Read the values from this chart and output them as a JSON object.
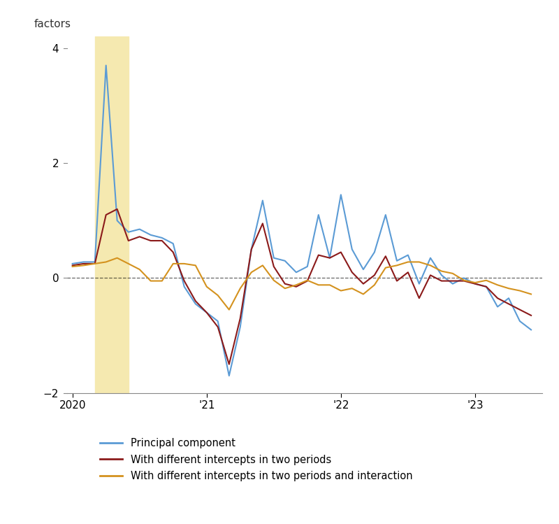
{
  "title": "",
  "ylabel": "factors",
  "ylim": [
    -2.0,
    4.2
  ],
  "yticks": [
    -2,
    0,
    2,
    4
  ],
  "background_color": "#ffffff",
  "shading_color": "#f5e9b0",
  "shading_start": 2020.17,
  "shading_end": 2020.42,
  "line_blue": "#5b9bd5",
  "line_red": "#8b1a1a",
  "line_orange": "#d4921e",
  "legend_labels": [
    "Principal component",
    "With different intercepts in two periods",
    "With different intercepts in two periods and interaction"
  ],
  "dates": [
    2020.0,
    2020.083,
    2020.167,
    2020.25,
    2020.333,
    2020.417,
    2020.5,
    2020.583,
    2020.667,
    2020.75,
    2020.833,
    2020.917,
    2021.0,
    2021.083,
    2021.167,
    2021.25,
    2021.333,
    2021.417,
    2021.5,
    2021.583,
    2021.667,
    2021.75,
    2021.833,
    2021.917,
    2022.0,
    2022.083,
    2022.167,
    2022.25,
    2022.333,
    2022.417,
    2022.5,
    2022.583,
    2022.667,
    2022.75,
    2022.833,
    2022.917,
    2023.0,
    2023.083,
    2023.167,
    2023.25,
    2023.333,
    2023.417
  ],
  "blue_values": [
    0.25,
    0.28,
    0.28,
    3.7,
    1.0,
    0.8,
    0.85,
    0.75,
    0.7,
    0.6,
    -0.15,
    -0.45,
    -0.6,
    -0.75,
    -1.7,
    -0.85,
    0.5,
    1.35,
    0.35,
    0.3,
    0.1,
    0.2,
    1.1,
    0.35,
    1.45,
    0.5,
    0.15,
    0.45,
    1.1,
    0.3,
    0.4,
    -0.1,
    0.35,
    0.05,
    -0.1,
    0.0,
    -0.1,
    -0.15,
    -0.5,
    -0.35,
    -0.75,
    -0.9
  ],
  "red_values": [
    0.22,
    0.25,
    0.25,
    1.1,
    1.2,
    0.65,
    0.72,
    0.65,
    0.65,
    0.45,
    -0.05,
    -0.4,
    -0.6,
    -0.85,
    -1.5,
    -0.7,
    0.5,
    0.95,
    0.2,
    -0.1,
    -0.15,
    -0.05,
    0.4,
    0.35,
    0.45,
    0.1,
    -0.1,
    0.05,
    0.38,
    -0.05,
    0.1,
    -0.35,
    0.05,
    -0.05,
    -0.05,
    -0.05,
    -0.1,
    -0.15,
    -0.35,
    -0.45,
    -0.55,
    -0.65
  ],
  "orange_values": [
    0.2,
    0.22,
    0.25,
    0.28,
    0.35,
    0.25,
    0.15,
    -0.05,
    -0.05,
    0.25,
    0.25,
    0.22,
    -0.15,
    -0.3,
    -0.55,
    -0.18,
    0.1,
    0.22,
    -0.04,
    -0.18,
    -0.12,
    -0.04,
    -0.12,
    -0.12,
    -0.22,
    -0.18,
    -0.28,
    -0.12,
    0.18,
    0.22,
    0.28,
    0.28,
    0.22,
    0.12,
    0.08,
    -0.04,
    -0.08,
    -0.04,
    -0.12,
    -0.18,
    -0.22,
    -0.28
  ],
  "xticks": [
    2020.0,
    2021.0,
    2022.0,
    2023.0
  ],
  "xtick_labels": [
    "2020",
    "'21",
    "'22",
    "'23"
  ],
  "xlim": [
    2019.96,
    2023.5
  ]
}
